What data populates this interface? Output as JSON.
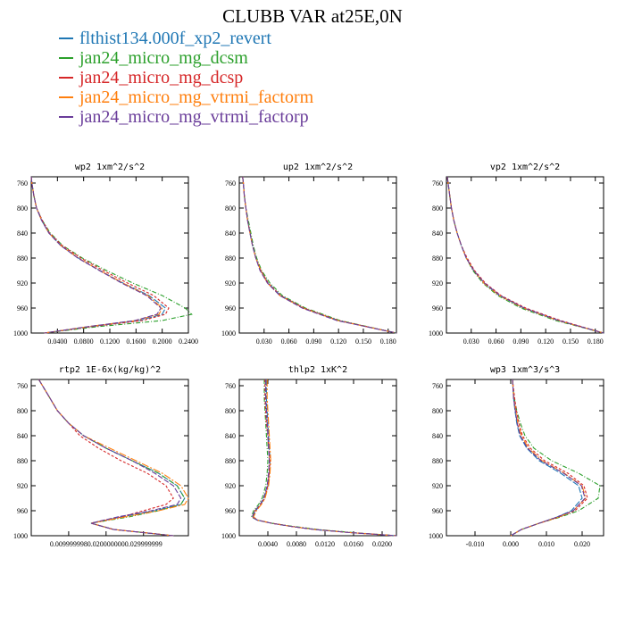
{
  "figure": {
    "title": "CLUBB VAR at25E,0N"
  },
  "legend": [
    {
      "name": "flthist134.000f_xp2_revert",
      "color": "#1f77b4"
    },
    {
      "name": "jan24_micro_mg_dcsm",
      "color": "#2ca02c"
    },
    {
      "name": "jan24_micro_mg_dcsp",
      "color": "#d62728"
    },
    {
      "name": "jan24_micro_mg_vtrmi_factorm",
      "color": "#ff7f0e"
    },
    {
      "name": "jan24_micro_mg_vtrmi_factorp",
      "color": "#6a3d9a"
    }
  ],
  "chart_data": [
    {
      "type": "line",
      "title": "wp2  1xm^2/s^2",
      "xlim": [
        0.0,
        0.24
      ],
      "ylim": [
        1000,
        750
      ],
      "xticks": [
        "0.0400",
        "0.0800",
        "0.1200",
        "0.1600",
        "0.2000",
        "0.2400"
      ],
      "yticks": [
        "760",
        "800",
        "840",
        "880",
        "920",
        "960",
        "1000"
      ],
      "y": [
        750,
        760,
        780,
        800,
        820,
        840,
        860,
        880,
        900,
        920,
        940,
        960,
        970,
        980,
        990,
        1000
      ],
      "series": [
        {
          "values": [
            0.0,
            0.001,
            0.004,
            0.008,
            0.016,
            0.027,
            0.045,
            0.072,
            0.105,
            0.14,
            0.18,
            0.205,
            0.2,
            0.165,
            0.09,
            0.02
          ]
        },
        {
          "values": [
            0.0,
            0.001,
            0.004,
            0.008,
            0.017,
            0.029,
            0.048,
            0.078,
            0.115,
            0.155,
            0.2,
            0.235,
            0.245,
            0.2,
            0.1,
            0.02
          ]
        },
        {
          "values": [
            0.0,
            0.001,
            0.004,
            0.008,
            0.017,
            0.028,
            0.047,
            0.076,
            0.11,
            0.147,
            0.187,
            0.21,
            0.205,
            0.17,
            0.09,
            0.02
          ]
        },
        {
          "values": [
            0.0,
            0.001,
            0.004,
            0.008,
            0.016,
            0.027,
            0.045,
            0.072,
            0.105,
            0.14,
            0.178,
            0.2,
            0.195,
            0.16,
            0.085,
            0.02
          ]
        },
        {
          "values": [
            0.0,
            0.001,
            0.004,
            0.008,
            0.016,
            0.027,
            0.045,
            0.071,
            0.104,
            0.138,
            0.176,
            0.198,
            0.192,
            0.158,
            0.085,
            0.02
          ]
        }
      ]
    },
    {
      "type": "line",
      "title": "up2  1xm^2/s^2",
      "xlim": [
        0.0,
        0.19
      ],
      "ylim": [
        1000,
        750
      ],
      "xticks": [
        "0.030",
        "0.060",
        "0.090",
        "0.120",
        "0.150",
        "0.180"
      ],
      "yticks": [
        "760",
        "800",
        "840",
        "880",
        "920",
        "960",
        "1000"
      ],
      "y": [
        750,
        760,
        780,
        800,
        820,
        840,
        860,
        880,
        900,
        920,
        940,
        960,
        980,
        1000
      ],
      "series": [
        {
          "values": [
            0.004,
            0.005,
            0.006,
            0.008,
            0.01,
            0.013,
            0.016,
            0.02,
            0.026,
            0.035,
            0.05,
            0.078,
            0.12,
            0.19
          ]
        },
        {
          "values": [
            0.004,
            0.005,
            0.006,
            0.008,
            0.011,
            0.014,
            0.017,
            0.021,
            0.027,
            0.037,
            0.052,
            0.08,
            0.122,
            0.19
          ]
        },
        {
          "values": [
            0.004,
            0.005,
            0.006,
            0.008,
            0.01,
            0.013,
            0.016,
            0.02,
            0.026,
            0.035,
            0.05,
            0.078,
            0.12,
            0.19
          ]
        },
        {
          "values": [
            0.004,
            0.005,
            0.006,
            0.008,
            0.01,
            0.013,
            0.016,
            0.02,
            0.026,
            0.034,
            0.049,
            0.077,
            0.119,
            0.19
          ]
        },
        {
          "values": [
            0.004,
            0.005,
            0.006,
            0.008,
            0.01,
            0.013,
            0.016,
            0.02,
            0.025,
            0.034,
            0.049,
            0.076,
            0.118,
            0.19
          ]
        }
      ]
    },
    {
      "type": "line",
      "title": "vp2  1xm^2/s^2",
      "xlim": [
        0.0,
        0.19
      ],
      "ylim": [
        1000,
        750
      ],
      "xticks": [
        "0.030",
        "0.060",
        "0.090",
        "0.120",
        "0.150",
        "0.180"
      ],
      "yticks": [
        "760",
        "800",
        "840",
        "880",
        "920",
        "960",
        "1000"
      ],
      "y": [
        750,
        760,
        780,
        800,
        820,
        840,
        860,
        880,
        900,
        920,
        940,
        960,
        980,
        1000
      ],
      "series": [
        {
          "values": [
            0.001,
            0.002,
            0.004,
            0.006,
            0.009,
            0.013,
            0.018,
            0.024,
            0.033,
            0.045,
            0.064,
            0.093,
            0.135,
            0.19
          ]
        },
        {
          "values": [
            0.001,
            0.002,
            0.004,
            0.006,
            0.009,
            0.013,
            0.018,
            0.024,
            0.032,
            0.044,
            0.062,
            0.09,
            0.132,
            0.19
          ]
        },
        {
          "values": [
            0.001,
            0.002,
            0.004,
            0.006,
            0.009,
            0.013,
            0.018,
            0.025,
            0.034,
            0.047,
            0.066,
            0.096,
            0.138,
            0.19
          ]
        },
        {
          "values": [
            0.001,
            0.002,
            0.004,
            0.006,
            0.009,
            0.013,
            0.018,
            0.024,
            0.033,
            0.045,
            0.064,
            0.093,
            0.135,
            0.19
          ]
        },
        {
          "values": [
            0.001,
            0.002,
            0.004,
            0.006,
            0.009,
            0.013,
            0.018,
            0.024,
            0.033,
            0.046,
            0.065,
            0.094,
            0.136,
            0.19
          ]
        }
      ]
    },
    {
      "type": "line",
      "title": "rtp2  1E-6x(kg/kg)^2",
      "xlim": [
        0.0,
        0.042
      ],
      "ylim": [
        1000,
        750
      ],
      "xticks": [
        "0.009999998",
        "0.020000000",
        "0.029999999"
      ],
      "yticks": [
        "760",
        "800",
        "840",
        "880",
        "920",
        "960",
        "1000"
      ],
      "y": [
        750,
        760,
        780,
        800,
        820,
        840,
        860,
        880,
        900,
        920,
        940,
        950,
        960,
        970,
        980,
        990,
        1000
      ],
      "series": [
        {
          "values": [
            0.002,
            0.003,
            0.005,
            0.007,
            0.01,
            0.014,
            0.02,
            0.027,
            0.034,
            0.039,
            0.041,
            0.04,
            0.033,
            0.024,
            0.016,
            0.022,
            0.038
          ]
        },
        {
          "values": [
            0.002,
            0.003,
            0.005,
            0.007,
            0.01,
            0.014,
            0.02,
            0.027,
            0.034,
            0.039,
            0.041,
            0.04,
            0.034,
            0.026,
            0.016,
            0.022,
            0.038
          ]
        },
        {
          "values": [
            0.002,
            0.003,
            0.005,
            0.007,
            0.01,
            0.013,
            0.018,
            0.024,
            0.031,
            0.036,
            0.038,
            0.036,
            0.03,
            0.024,
            0.016,
            0.022,
            0.038
          ]
        },
        {
          "values": [
            0.002,
            0.003,
            0.005,
            0.007,
            0.01,
            0.014,
            0.021,
            0.028,
            0.035,
            0.04,
            0.042,
            0.041,
            0.034,
            0.025,
            0.016,
            0.022,
            0.038
          ]
        },
        {
          "values": [
            0.002,
            0.003,
            0.005,
            0.007,
            0.01,
            0.014,
            0.02,
            0.027,
            0.033,
            0.038,
            0.04,
            0.039,
            0.032,
            0.023,
            0.016,
            0.022,
            0.038
          ]
        }
      ]
    },
    {
      "type": "line",
      "title": "thlp2  1xK^2",
      "xlim": [
        0.0,
        0.022
      ],
      "ylim": [
        1000,
        750
      ],
      "xticks": [
        "0.0040",
        "0.0080",
        "0.0120",
        "0.0160",
        "0.0200"
      ],
      "yticks": [
        "760",
        "800",
        "840",
        "880",
        "920",
        "960",
        "1000"
      ],
      "y": [
        750,
        760,
        780,
        800,
        820,
        840,
        860,
        880,
        900,
        920,
        940,
        950,
        960,
        970,
        975,
        980,
        985,
        990,
        995,
        1000
      ],
      "series": [
        {
          "values": [
            0.0038,
            0.0038,
            0.0038,
            0.0039,
            0.004,
            0.0041,
            0.0042,
            0.0043,
            0.0042,
            0.004,
            0.0035,
            0.003,
            0.0023,
            0.0019,
            0.0025,
            0.0045,
            0.0072,
            0.0105,
            0.0155,
            0.022
          ]
        },
        {
          "values": [
            0.0035,
            0.0035,
            0.0035,
            0.0036,
            0.0037,
            0.0038,
            0.0039,
            0.004,
            0.0039,
            0.0037,
            0.0032,
            0.0027,
            0.002,
            0.0017,
            0.0025,
            0.0045,
            0.0075,
            0.011,
            0.016,
            0.022
          ]
        },
        {
          "values": [
            0.0036,
            0.0036,
            0.0036,
            0.0037,
            0.0038,
            0.004,
            0.0041,
            0.0043,
            0.0042,
            0.004,
            0.0036,
            0.003,
            0.0022,
            0.0018,
            0.0025,
            0.0045,
            0.0072,
            0.0105,
            0.0155,
            0.022
          ]
        },
        {
          "values": [
            0.0039,
            0.0039,
            0.0039,
            0.004,
            0.0041,
            0.0042,
            0.0043,
            0.0044,
            0.0043,
            0.0041,
            0.0036,
            0.0031,
            0.0024,
            0.002,
            0.0026,
            0.0046,
            0.0072,
            0.0105,
            0.0155,
            0.022
          ]
        },
        {
          "values": [
            0.0037,
            0.0037,
            0.0037,
            0.0038,
            0.0039,
            0.004,
            0.0041,
            0.0042,
            0.0041,
            0.0039,
            0.0034,
            0.0029,
            0.0022,
            0.0018,
            0.0025,
            0.0045,
            0.0072,
            0.0105,
            0.0155,
            0.022
          ]
        }
      ]
    },
    {
      "type": "line",
      "title": "wp3  1xm^3/s^3",
      "xlim": [
        -0.018,
        0.026
      ],
      "ylim": [
        1000,
        750
      ],
      "xticks": [
        "-0.010",
        "0.000",
        "0.010",
        "0.020"
      ],
      "yticks": [
        "760",
        "800",
        "840",
        "880",
        "920",
        "960",
        "1000"
      ],
      "y": [
        750,
        760,
        780,
        800,
        820,
        840,
        860,
        880,
        900,
        920,
        940,
        960,
        970,
        980,
        990,
        1000
      ],
      "series": [
        {
          "values": [
            0.0005,
            0.0006,
            0.0008,
            0.0012,
            0.0017,
            0.0025,
            0.0045,
            0.008,
            0.014,
            0.019,
            0.02,
            0.017,
            0.013,
            0.008,
            0.003,
            0.0
          ]
        },
        {
          "values": [
            0.0005,
            0.0006,
            0.001,
            0.0017,
            0.0027,
            0.004,
            0.0065,
            0.0115,
            0.019,
            0.025,
            0.0245,
            0.019,
            0.014,
            0.008,
            0.003,
            0.0
          ]
        },
        {
          "values": [
            0.0005,
            0.0007,
            0.0011,
            0.0016,
            0.0023,
            0.0033,
            0.0055,
            0.0095,
            0.016,
            0.0205,
            0.0215,
            0.018,
            0.0135,
            0.008,
            0.003,
            0.0
          ]
        },
        {
          "values": [
            0.0005,
            0.0006,
            0.0009,
            0.0014,
            0.002,
            0.003,
            0.005,
            0.0088,
            0.015,
            0.02,
            0.021,
            0.0175,
            0.0135,
            0.008,
            0.003,
            0.0
          ]
        },
        {
          "values": [
            0.0005,
            0.0006,
            0.0008,
            0.0013,
            0.0018,
            0.0027,
            0.0047,
            0.0085,
            0.0148,
            0.0198,
            0.0208,
            0.0175,
            0.013,
            0.008,
            0.003,
            0.0
          ]
        }
      ]
    }
  ]
}
